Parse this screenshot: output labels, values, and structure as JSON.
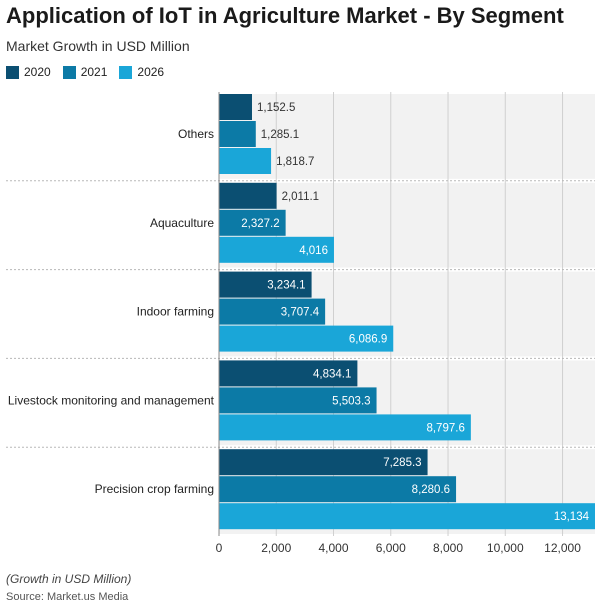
{
  "header": {
    "title": "Application of IoT in Agriculture Market - By Segment",
    "subtitle": "Market Growth in USD Million"
  },
  "footer": {
    "note": "(Growth in USD Million)",
    "source": "Source: Market.us Media"
  },
  "chart_data": {
    "type": "bar",
    "orientation": "horizontal",
    "title": "Application of IoT in Agriculture Market - By Segment",
    "subtitle": "Market Growth in USD Million",
    "categories": [
      "Others",
      "Aquaculture",
      "Indoor farming",
      "Livestock monitoring and management",
      "Precision crop farming"
    ],
    "series": [
      {
        "name": "2020",
        "color": "#0b4f72",
        "values": [
          1152.5,
          2011.1,
          3234.1,
          4834.1,
          7285.3
        ],
        "labels": [
          "1,152.5",
          "2,011.1",
          "3,234.1",
          "4,834.1",
          "7,285.3"
        ]
      },
      {
        "name": "2021",
        "color": "#0c7aa6",
        "values": [
          1285.1,
          2327.2,
          3707.4,
          5503.3,
          8280.6
        ],
        "labels": [
          "1,285.1",
          "2,327.2",
          "3,707.4",
          "5,503.3",
          "8,280.6"
        ]
      },
      {
        "name": "2026",
        "color": "#1aa6d8",
        "values": [
          1818.7,
          4016,
          6086.9,
          8797.6,
          13134
        ],
        "labels": [
          "1,818.7",
          "4,016",
          "6,086.9",
          "8,797.6",
          "13,134"
        ]
      }
    ],
    "xlim": [
      0,
      13134
    ],
    "xticks": [
      0,
      2000,
      4000,
      6000,
      8000,
      10000,
      12000
    ],
    "xtick_labels": [
      "0",
      "2,000",
      "4,000",
      "6,000",
      "8,000",
      "10,000",
      "12,000"
    ],
    "xlabel": "",
    "ylabel": "",
    "grid": true,
    "legend_position": "top-left"
  }
}
